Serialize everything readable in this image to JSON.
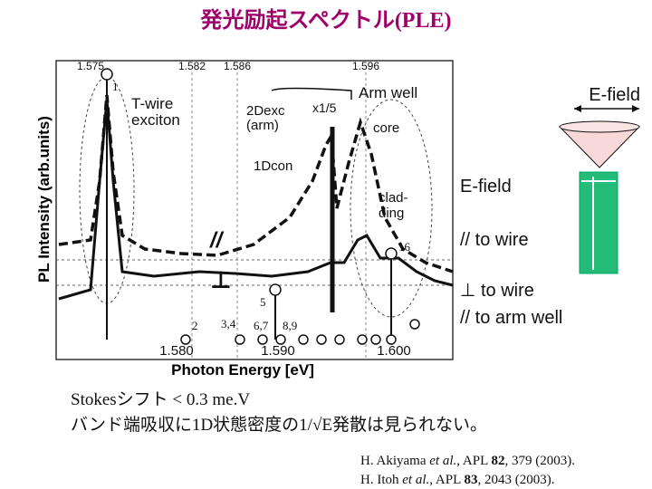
{
  "title": "発光励起スペクトル(PLE)",
  "plot": {
    "y_axis_label": "PL Intensity (arb.units)",
    "x_axis_label": "Photon Energy [eV]",
    "top_labels": [
      "1.575",
      "1.582",
      "1.586",
      "1.596"
    ],
    "bottom_labels": [
      "1.580",
      "1.590",
      "1.600"
    ],
    "annotations": {
      "peak1": "1",
      "twire1": "T-wire",
      "twire2": "exciton",
      "dexc1": "2Dexc",
      "dexc2": "(arm)",
      "scale": "x1/5",
      "armwell": "Arm well",
      "core": "core",
      "dcon": "1Dcon",
      "clad1": "clad-",
      "clad2": "ding",
      "par": "//",
      "perp": "⊥",
      "n16": "16",
      "n5": "5",
      "n2": "2",
      "n34": "3,4",
      "n67": "6,7",
      "n89": "8,9"
    }
  },
  "legend": {
    "efield_top": "E-field",
    "efield": "E-field",
    "par_wire": "// to wire",
    "perp_wire": "⊥  to wire",
    "par_arm": "// to arm well"
  },
  "notes": [
    "Stokesシフト  < 0.3 me.V",
    "バンド端吸収に1D状態密度の1/√E発散は見られない。"
  ],
  "references": [
    {
      "authors": "H. Akiyama",
      "etal": "et al.",
      "journal": ", APL ",
      "volume": "82",
      "rest": ", 379 (2003)."
    },
    {
      "authors": "H. Itoh",
      "etal": "et al.,",
      "journal": " APL ",
      "volume": "83",
      "rest": ", 2043 (2003)."
    }
  ]
}
